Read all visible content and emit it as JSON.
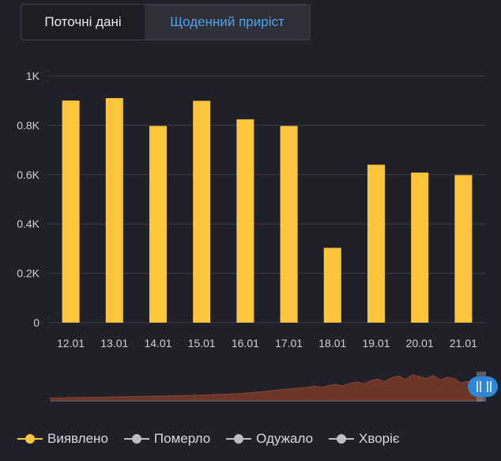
{
  "tabs": {
    "current_label": "Поточні дані",
    "daily_label": "Щоденний приріст",
    "active": "daily"
  },
  "colors": {
    "background": "#202128",
    "bar": "#ffc53d",
    "grid": "#3a3c46",
    "axis_text": "#d0d0d6",
    "tab_active_text": "#4aa3ef",
    "navigator_area": "#6b3528",
    "navigator_handle": "#2f86d6",
    "legend_inactive": "#bdbdc4"
  },
  "chart_data": {
    "type": "bar",
    "categories": [
      "12.01",
      "13.01",
      "14.01",
      "15.01",
      "16.01",
      "17.01",
      "18.01",
      "19.01",
      "20.01",
      "21.01"
    ],
    "series": [
      {
        "name": "Виявлено",
        "values": [
          900,
          910,
          797,
          899,
          824,
          797,
          303,
          640,
          608,
          598
        ]
      }
    ],
    "ylim": [
      0,
      1000
    ],
    "yticks": [
      {
        "value": 0,
        "label": "0"
      },
      {
        "value": 200,
        "label": "0.2K"
      },
      {
        "value": 400,
        "label": "0.4K"
      },
      {
        "value": 600,
        "label": "0.6K"
      },
      {
        "value": 800,
        "label": "0.8K"
      },
      {
        "value": 1000,
        "label": "1K"
      }
    ],
    "grid": true,
    "title": "",
    "xlabel": "",
    "ylabel": ""
  },
  "navigator": {
    "values": [
      2,
      3,
      3,
      4,
      4,
      5,
      5,
      6,
      6,
      7,
      7,
      8,
      8,
      9,
      9,
      10,
      10,
      11,
      12,
      12,
      13,
      14,
      15,
      16,
      17,
      18,
      19,
      21,
      23,
      25,
      28,
      31,
      34,
      37,
      40,
      42,
      45,
      48,
      52,
      47,
      55,
      60,
      53,
      64,
      70,
      62,
      75,
      82,
      71,
      88,
      95,
      80,
      100,
      92,
      85,
      97,
      78,
      90,
      84,
      65,
      73,
      68,
      58
    ]
  },
  "legend": [
    {
      "label": "Виявлено",
      "color": "#ffc53d",
      "active": true
    },
    {
      "label": "Померло",
      "color": "#bdbdc4",
      "active": false
    },
    {
      "label": "Одужало",
      "color": "#bdbdc4",
      "active": false
    },
    {
      "label": "Хворіє",
      "color": "#bdbdc4",
      "active": false
    }
  ]
}
